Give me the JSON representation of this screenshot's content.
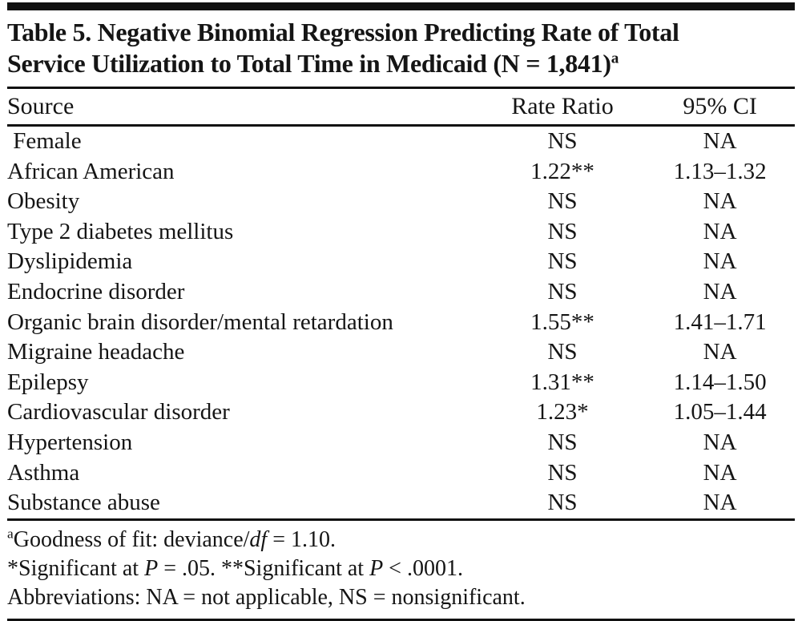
{
  "figure": {
    "title_line1": "Table 5. Negative Binomial Regression Predicting Rate of Total",
    "title_line2": "Service Utilization to Total Time in Medicaid (N = 1,841)",
    "title_footnote_marker": "a"
  },
  "table": {
    "columns": {
      "source": "Source",
      "rate_ratio": "Rate Ratio",
      "ci": "95% CI"
    },
    "rows": [
      {
        "source": " Female",
        "rate_ratio": "NS",
        "ci": "NA"
      },
      {
        "source": "African American",
        "rate_ratio": "1.22**",
        "ci": "1.13–1.32"
      },
      {
        "source": "Obesity",
        "rate_ratio": "NS",
        "ci": "NA"
      },
      {
        "source": "Type 2 diabetes mellitus",
        "rate_ratio": "NS",
        "ci": "NA"
      },
      {
        "source": "Dyslipidemia",
        "rate_ratio": "NS",
        "ci": "NA"
      },
      {
        "source": "Endocrine disorder",
        "rate_ratio": "NS",
        "ci": "NA"
      },
      {
        "source": "Organic brain disorder/mental retardation",
        "rate_ratio": "1.55**",
        "ci": "1.41–1.71"
      },
      {
        "source": "Migraine headache",
        "rate_ratio": "NS",
        "ci": "NA"
      },
      {
        "source": "Epilepsy",
        "rate_ratio": "1.31**",
        "ci": "1.14–1.50"
      },
      {
        "source": "Cardiovascular disorder",
        "rate_ratio": "1.23*",
        "ci": "1.05–1.44"
      },
      {
        "source": "Hypertension",
        "rate_ratio": "NS",
        "ci": "NA"
      },
      {
        "source": "Asthma",
        "rate_ratio": "NS",
        "ci": "NA"
      },
      {
        "source": "Substance abuse",
        "rate_ratio": "NS",
        "ci": "NA"
      }
    ]
  },
  "footnotes": {
    "goodness": {
      "marker": "a",
      "pre": "Goodness of fit: deviance/",
      "italic": "df",
      "post": " = 1.10."
    },
    "significance": {
      "part1": "*Significant at ",
      "italic1": "P",
      "part2": " = .05. **Significant at ",
      "italic2": "P",
      "part3": " < .0001."
    },
    "abbreviations": "Abbreviations: NA = not applicable, NS = nonsignificant."
  },
  "colors": {
    "text": "#151515",
    "rule": "#111111",
    "background": "#ffffff"
  }
}
